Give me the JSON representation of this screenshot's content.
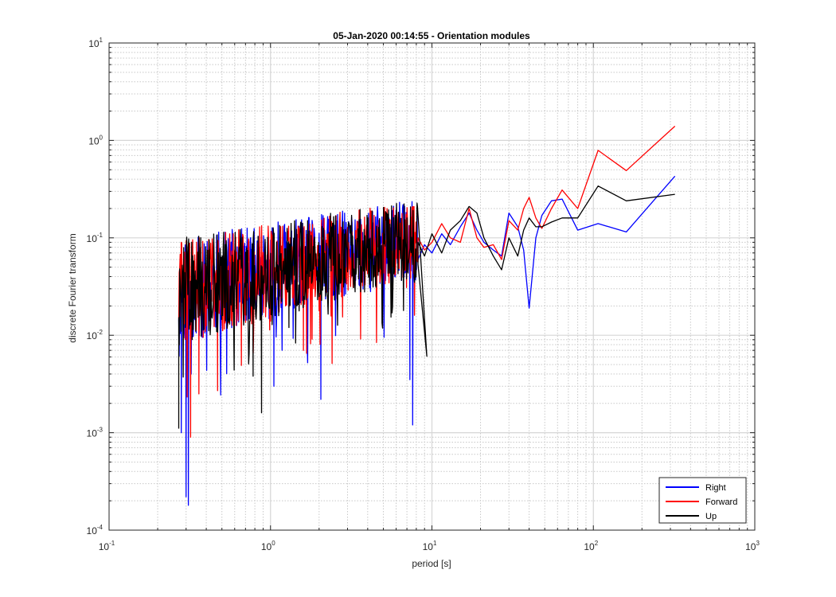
{
  "chart_data": {
    "type": "line",
    "title": "05-Jan-2020 00:14:55 - Orientation modules",
    "xlabel": "period [s]",
    "ylabel": "discrete Fourier transform",
    "xscale": "log",
    "yscale": "log",
    "xlim": [
      0.1,
      1000
    ],
    "ylim": [
      0.0001,
      10
    ],
    "grid": true,
    "minor_grid": true,
    "legend_position": "bottom-right",
    "x_ticks": [
      {
        "base": "10",
        "exp": "-1"
      },
      {
        "base": "10",
        "exp": "0"
      },
      {
        "base": "10",
        "exp": "1"
      },
      {
        "base": "10",
        "exp": "2"
      },
      {
        "base": "10",
        "exp": "3"
      }
    ],
    "y_ticks": [
      {
        "base": "10",
        "exp": "-4"
      },
      {
        "base": "10",
        "exp": "-3"
      },
      {
        "base": "10",
        "exp": "-2"
      },
      {
        "base": "10",
        "exp": "-1"
      },
      {
        "base": "10",
        "exp": "0"
      },
      {
        "base": "10",
        "exp": "1"
      }
    ],
    "series": [
      {
        "name": "Right",
        "color": "#0000ff",
        "x": [
          8.2,
          9.0,
          10.0,
          11.5,
          13.0,
          15.0,
          17.0,
          19.0,
          21.0,
          24.0,
          27.0,
          30.0,
          34.0,
          37.0,
          40.0,
          44.0,
          48.0,
          55.0,
          64.0,
          80.0,
          107.0,
          160.0,
          320.0
        ],
        "y": [
          0.06,
          0.085,
          0.07,
          0.11,
          0.085,
          0.13,
          0.18,
          0.12,
          0.09,
          0.075,
          0.065,
          0.18,
          0.13,
          0.075,
          0.019,
          0.1,
          0.17,
          0.24,
          0.25,
          0.12,
          0.14,
          0.115,
          0.43
        ]
      },
      {
        "name": "Forward",
        "color": "#ff0000",
        "x": [
          8.2,
          9.0,
          10.0,
          11.5,
          13.0,
          15.0,
          17.0,
          19.0,
          21.0,
          24.0,
          27.0,
          30.0,
          34.0,
          37.0,
          40.0,
          44.0,
          48.0,
          55.0,
          64.0,
          80.0,
          107.0,
          160.0,
          320.0
        ],
        "y": [
          0.1,
          0.075,
          0.09,
          0.14,
          0.1,
          0.09,
          0.2,
          0.1,
          0.08,
          0.085,
          0.06,
          0.15,
          0.12,
          0.2,
          0.26,
          0.16,
          0.125,
          0.2,
          0.31,
          0.2,
          0.79,
          0.49,
          1.4
        ]
      },
      {
        "name": "Up",
        "color": "#000000",
        "x": [
          8.2,
          9.0,
          10.0,
          11.5,
          13.0,
          15.0,
          17.0,
          19.0,
          21.0,
          24.0,
          27.0,
          30.0,
          34.0,
          37.0,
          40.0,
          44.0,
          48.0,
          55.0,
          64.0,
          80.0,
          107.0,
          160.0,
          320.0
        ],
        "y": [
          0.09,
          0.065,
          0.11,
          0.07,
          0.12,
          0.15,
          0.21,
          0.18,
          0.1,
          0.065,
          0.047,
          0.1,
          0.065,
          0.12,
          0.16,
          0.13,
          0.13,
          0.145,
          0.16,
          0.16,
          0.34,
          0.24,
          0.28
        ]
      }
    ],
    "dense_region": {
      "x_range": [
        0.27,
        8.0
      ],
      "pattern": "noisy high-frequency oscillation between series"
    }
  }
}
